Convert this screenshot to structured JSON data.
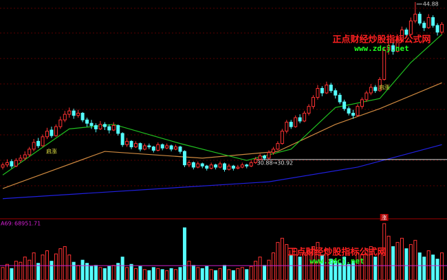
{
  "chart_data": {
    "type": "candlestick",
    "ylim": [
      26.1,
      45.06
    ],
    "up_color": "#ff3232",
    "down_color": "#54fcfc",
    "open": [
      30.2,
      30.4,
      30.7,
      30.3,
      30.8,
      31.0,
      31.3,
      31.8,
      32.5,
      32.1,
      32.9,
      33.5,
      33.0,
      33.8,
      34.4,
      34.9,
      35.2,
      34.8,
      35.0,
      34.4,
      34.1,
      33.9,
      33.6,
      34.0,
      33.8,
      33.5,
      33.9,
      33.2,
      32.2,
      32.5,
      32.0,
      32.3,
      31.8,
      32.1,
      32.0,
      31.7,
      32.2,
      31.9,
      32.1,
      31.8,
      32.0,
      31.6,
      30.4,
      30.6,
      30.2,
      30.5,
      30.3,
      30.1,
      30.4,
      30.2,
      30.5,
      30.0,
      30.3,
      30.1,
      30.2,
      30.4,
      30.3,
      30.6,
      30.9,
      31.2,
      31.0,
      31.5,
      31.8,
      32.3,
      33.4,
      34.2,
      33.8,
      34.6,
      34.3,
      35.0,
      35.6,
      36.4,
      37.2,
      36.8,
      37.5,
      37.0,
      36.6,
      36.0,
      35.4,
      35.0,
      34.8,
      35.6,
      36.2,
      36.8,
      37.3,
      37.0,
      38.0,
      40.6,
      41.0,
      40.5,
      41.5,
      42.4,
      42.0,
      43.2,
      43.8,
      43.0,
      42.6,
      43.5,
      42.8,
      42.2
    ],
    "high": [
      30.6,
      30.9,
      30.9,
      31.0,
      31.3,
      31.6,
      32.0,
      32.7,
      32.8,
      33.1,
      33.7,
      33.8,
      34.0,
      34.7,
      35.2,
      35.5,
      35.4,
      35.3,
      35.1,
      34.6,
      34.4,
      34.1,
      34.3,
      34.2,
      34.0,
      34.2,
      34.0,
      33.3,
      32.8,
      32.6,
      32.5,
      32.4,
      32.3,
      32.3,
      32.1,
      32.4,
      32.3,
      32.3,
      32.2,
      32.2,
      32.1,
      31.7,
      30.8,
      30.7,
      30.7,
      30.6,
      30.4,
      30.6,
      30.5,
      30.7,
      30.6,
      30.5,
      30.4,
      30.4,
      30.6,
      30.5,
      30.8,
      31.1,
      31.4,
      31.3,
      31.7,
      32.0,
      32.5,
      33.6,
      34.4,
      34.4,
      34.8,
      34.9,
      35.2,
      35.8,
      36.6,
      37.5,
      37.4,
      37.8,
      37.7,
      37.2,
      36.8,
      36.2,
      35.6,
      35.3,
      35.8,
      36.4,
      37.0,
      37.6,
      37.5,
      38.2,
      40.8,
      41.5,
      41.3,
      41.8,
      42.7,
      42.6,
      43.5,
      44.88,
      44.0,
      43.2,
      43.8,
      43.7,
      43.0,
      43.1
    ],
    "low": [
      30.0,
      30.2,
      30.1,
      30.2,
      30.6,
      30.8,
      31.1,
      31.6,
      31.9,
      32.0,
      32.7,
      32.8,
      32.9,
      33.6,
      34.2,
      34.6,
      34.5,
      34.6,
      34.2,
      33.8,
      33.6,
      33.3,
      33.5,
      33.5,
      33.2,
      33.4,
      33.0,
      32.0,
      32.0,
      31.8,
      31.9,
      31.6,
      31.7,
      31.8,
      31.5,
      31.6,
      31.7,
      31.8,
      31.6,
      31.7,
      31.4,
      30.2,
      30.2,
      30.0,
      30.1,
      30.1,
      29.9,
      30.0,
      30.0,
      30.1,
      29.8,
      29.9,
      29.9,
      30.0,
      30.1,
      30.1,
      30.2,
      30.5,
      30.8,
      30.8,
      30.9,
      31.3,
      31.7,
      32.2,
      33.2,
      33.6,
      33.7,
      34.1,
      34.2,
      34.8,
      35.4,
      36.2,
      36.5,
      36.7,
      36.8,
      36.3,
      35.8,
      35.2,
      34.8,
      34.5,
      34.7,
      35.4,
      36.0,
      36.6,
      36.8,
      36.9,
      37.9,
      40.2,
      40.2,
      40.4,
      41.3,
      41.7,
      41.9,
      43.0,
      42.8,
      42.3,
      42.5,
      42.6,
      41.9,
      42.0
    ],
    "close": [
      30.4,
      30.6,
      30.3,
      30.8,
      31.0,
      31.3,
      31.8,
      32.4,
      32.1,
      32.9,
      33.4,
      33.0,
      33.8,
      34.4,
      34.9,
      35.2,
      34.8,
      35.0,
      34.4,
      34.1,
      33.9,
      33.6,
      34.0,
      33.8,
      33.5,
      33.9,
      33.2,
      32.2,
      32.5,
      32.0,
      32.3,
      31.8,
      32.1,
      32.0,
      31.7,
      32.2,
      31.9,
      32.1,
      31.8,
      32.0,
      31.6,
      30.4,
      30.6,
      30.2,
      30.5,
      30.3,
      30.1,
      30.4,
      30.2,
      30.5,
      30.0,
      30.3,
      30.1,
      30.2,
      30.4,
      30.3,
      30.6,
      30.9,
      31.2,
      31.0,
      31.5,
      31.8,
      32.3,
      33.4,
      34.2,
      33.8,
      34.6,
      34.3,
      35.0,
      35.6,
      36.4,
      37.2,
      36.8,
      37.5,
      37.0,
      36.6,
      36.0,
      35.4,
      35.0,
      34.8,
      35.6,
      36.2,
      36.8,
      37.3,
      37.0,
      38.0,
      40.6,
      41.0,
      40.5,
      41.5,
      42.4,
      42.0,
      43.2,
      43.8,
      43.0,
      42.6,
      43.5,
      42.8,
      42.2,
      42.9
    ],
    "ma_lines": [
      {
        "color": "#2020e0",
        "x": [
          0,
          20,
          40,
          60,
          80,
          99
        ],
        "values": [
          27.4,
          27.9,
          28.4,
          28.9,
          30.2,
          32.2
        ]
      },
      {
        "color": "#d08a40",
        "x": [
          0,
          23,
          45,
          62,
          75,
          85,
          99
        ],
        "values": [
          28.3,
          31.6,
          31.0,
          31.6,
          34.0,
          35.4,
          37.7
        ]
      },
      {
        "color": "#20c020",
        "x": [
          0,
          15,
          25,
          40,
          55,
          65,
          75,
          85,
          92,
          99
        ],
        "values": [
          29.5,
          33.6,
          34.0,
          32.3,
          30.8,
          31.8,
          35.5,
          36.3,
          39.5,
          42.0
        ]
      }
    ],
    "ref_line": {
      "value": 30.88,
      "label": "30.88→30.92",
      "start": 57
    },
    "annotations": [
      {
        "text": "启涨",
        "index": 11,
        "value": 31.6
      },
      {
        "text": "启涨",
        "index": 86,
        "value": 37.3
      }
    ],
    "volume": {
      "label": "A69:",
      "ma": 68951.71,
      "ylim": [
        0,
        280000
      ],
      "signal": {
        "text": "涨",
        "index": 86
      },
      "values": [
        60000,
        75000,
        55000,
        90000,
        85000,
        110000,
        95000,
        130000,
        80000,
        120000,
        140000,
        90000,
        125000,
        150000,
        160000,
        120000,
        85000,
        70000,
        95000,
        80000,
        65000,
        70000,
        60000,
        55000,
        65000,
        70000,
        80000,
        110000,
        60000,
        75000,
        55000,
        65000,
        50000,
        45000,
        60000,
        55000,
        50000,
        45000,
        55000,
        50000,
        60000,
        250000,
        90000,
        70000,
        60000,
        55000,
        65000,
        50000,
        45000,
        55000,
        70000,
        50000,
        45000,
        55000,
        60000,
        50000,
        65000,
        90000,
        110000,
        70000,
        95000,
        130000,
        180000,
        200000,
        170000,
        120000,
        150000,
        110000,
        130000,
        140000,
        160000,
        180000,
        120000,
        150000,
        100000,
        90000,
        80000,
        110000,
        75000,
        90000,
        130000,
        120000,
        150000,
        160000,
        110000,
        140000,
        270000,
        210000,
        160000,
        180000,
        200000,
        150000,
        170000,
        190000,
        130000,
        110000,
        140000,
        120000,
        100000,
        130000
      ]
    },
    "watermarks": [
      {
        "title": "正点财经炒股指标公式网",
        "url": "www.zdcj.net"
      },
      {
        "title": "正点财经炒股指标公式网",
        "url": "www.zdcj.net"
      }
    ]
  }
}
